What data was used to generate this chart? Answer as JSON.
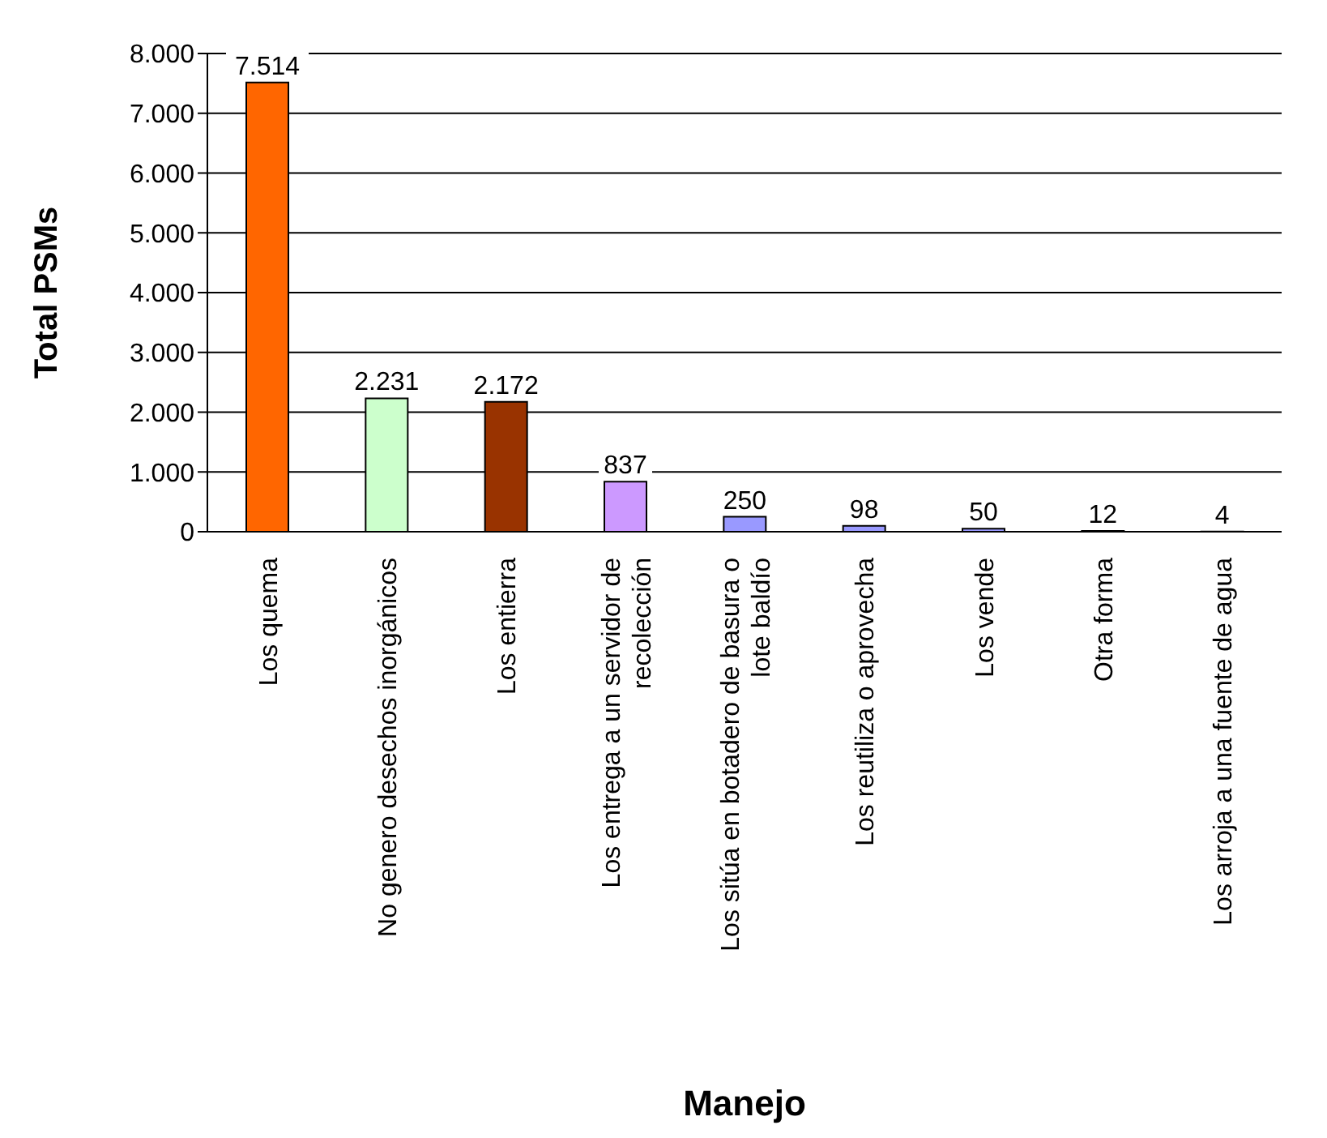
{
  "chart_data": {
    "type": "bar",
    "xlabel": "Manejo",
    "ylabel": "Total PSMs",
    "categories": [
      "Los quema",
      "No genero desechos inorgánicos",
      "Los entierra",
      "Los entrega a un servidor de recolección",
      "Los sitúa en botadero de basura o lote baldío",
      "Los reutiliza o aprovecha",
      "Los vende",
      "Otra forma",
      "Los arroja a una fuente de agua"
    ],
    "values": [
      7514,
      2231,
      2172,
      837,
      250,
      98,
      50,
      12,
      4
    ],
    "colors": [
      "#ff6600",
      "#ccffcc",
      "#993300",
      "#cc99ff",
      "#9999ff",
      "#9999ff",
      "#9999ff",
      "#9999ff",
      "#9999ff"
    ],
    "value_labels": [
      "7.514",
      "2.231",
      "2.172",
      "837",
      "250",
      "98",
      "50",
      "12",
      "4"
    ],
    "ylim": [
      0,
      8000
    ],
    "yticks": [
      0,
      {
        "value": 1000,
        "label": "1.000"
      },
      {
        "value": 2000,
        "label": "2.000"
      },
      {
        "value": 3000,
        "label": "3.000"
      },
      {
        "value": 4000,
        "label": "4.000"
      },
      {
        "value": 5000,
        "label": "5.000"
      },
      {
        "value": 6000,
        "label": "6.000"
      },
      {
        "value": 7000,
        "label": "7.000"
      },
      {
        "value": 8000,
        "label": "8.000"
      }
    ],
    "grid": "y",
    "legend": false
  }
}
